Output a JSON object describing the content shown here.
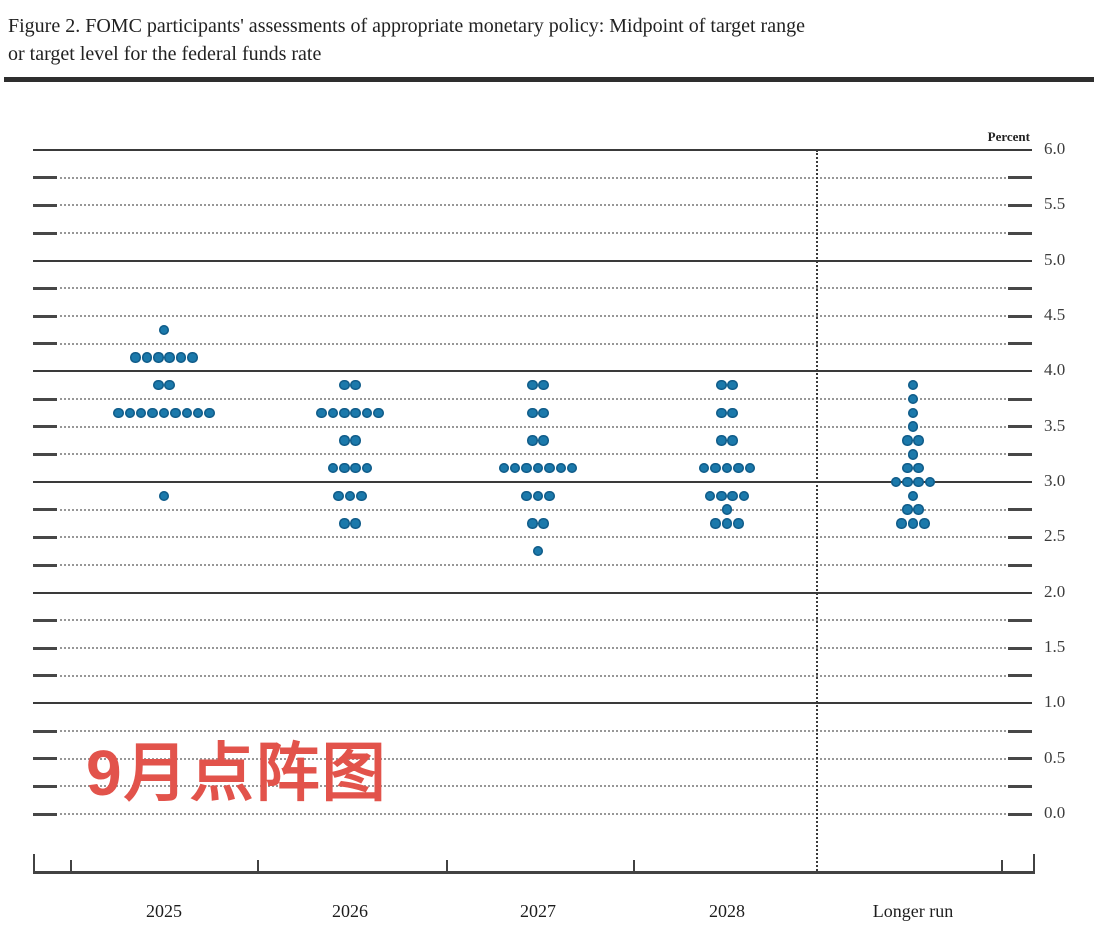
{
  "header": {
    "title_line1": "Figure 2. FOMC participants' assessments of appropriate monetary policy: Midpoint of target range",
    "title_line2": "or target level for the federal funds rate"
  },
  "chart_data": {
    "type": "scatter",
    "title": "FOMC participants' assessments of appropriate monetary policy: Midpoint of target range or target level for the federal funds rate",
    "ylabel": "Percent",
    "ylim": [
      0.0,
      6.0
    ],
    "y_minor_step": 0.25,
    "y_label_step": 0.5,
    "grid": "solid lines at whole percents (1.0-6.0), dotted lines at quarter percents and 0.0, tick marks both sides",
    "legend_position": "none",
    "separator": "dotted vertical line between 2028 and Longer run",
    "categories": [
      "2025",
      "2026",
      "2027",
      "2028",
      "Longer run"
    ],
    "dot_color": "#1b79ab",
    "series": [
      {
        "name": "2025",
        "points": [
          {
            "level": 4.375,
            "count": 1
          },
          {
            "level": 4.125,
            "count": 6
          },
          {
            "level": 3.875,
            "count": 2
          },
          {
            "level": 3.625,
            "count": 9
          },
          {
            "level": 2.875,
            "count": 1
          }
        ]
      },
      {
        "name": "2026",
        "points": [
          {
            "level": 3.875,
            "count": 2
          },
          {
            "level": 3.625,
            "count": 6
          },
          {
            "level": 3.375,
            "count": 2
          },
          {
            "level": 3.125,
            "count": 4
          },
          {
            "level": 2.875,
            "count": 3
          },
          {
            "level": 2.625,
            "count": 2
          }
        ]
      },
      {
        "name": "2027",
        "points": [
          {
            "level": 3.875,
            "count": 2
          },
          {
            "level": 3.625,
            "count": 2
          },
          {
            "level": 3.375,
            "count": 2
          },
          {
            "level": 3.125,
            "count": 7
          },
          {
            "level": 2.875,
            "count": 3
          },
          {
            "level": 2.625,
            "count": 2
          },
          {
            "level": 2.375,
            "count": 1
          }
        ]
      },
      {
        "name": "2028",
        "points": [
          {
            "level": 3.875,
            "count": 2
          },
          {
            "level": 3.625,
            "count": 2
          },
          {
            "level": 3.375,
            "count": 2
          },
          {
            "level": 3.125,
            "count": 5
          },
          {
            "level": 2.875,
            "count": 4
          },
          {
            "level": 2.75,
            "count": 1
          },
          {
            "level": 2.625,
            "count": 3
          }
        ]
      },
      {
        "name": "Longer run",
        "points": [
          {
            "level": 3.875,
            "count": 1
          },
          {
            "level": 3.75,
            "count": 1
          },
          {
            "level": 3.625,
            "count": 1
          },
          {
            "level": 3.5,
            "count": 1
          },
          {
            "level": 3.375,
            "count": 2
          },
          {
            "level": 3.25,
            "count": 1
          },
          {
            "level": 3.125,
            "count": 2
          },
          {
            "level": 3.0,
            "count": 4
          },
          {
            "level": 2.875,
            "count": 1
          },
          {
            "level": 2.75,
            "count": 2
          },
          {
            "level": 2.625,
            "count": 3
          }
        ]
      }
    ],
    "annotation": {
      "text": "9月点阵图",
      "color": "#e2534b"
    }
  }
}
